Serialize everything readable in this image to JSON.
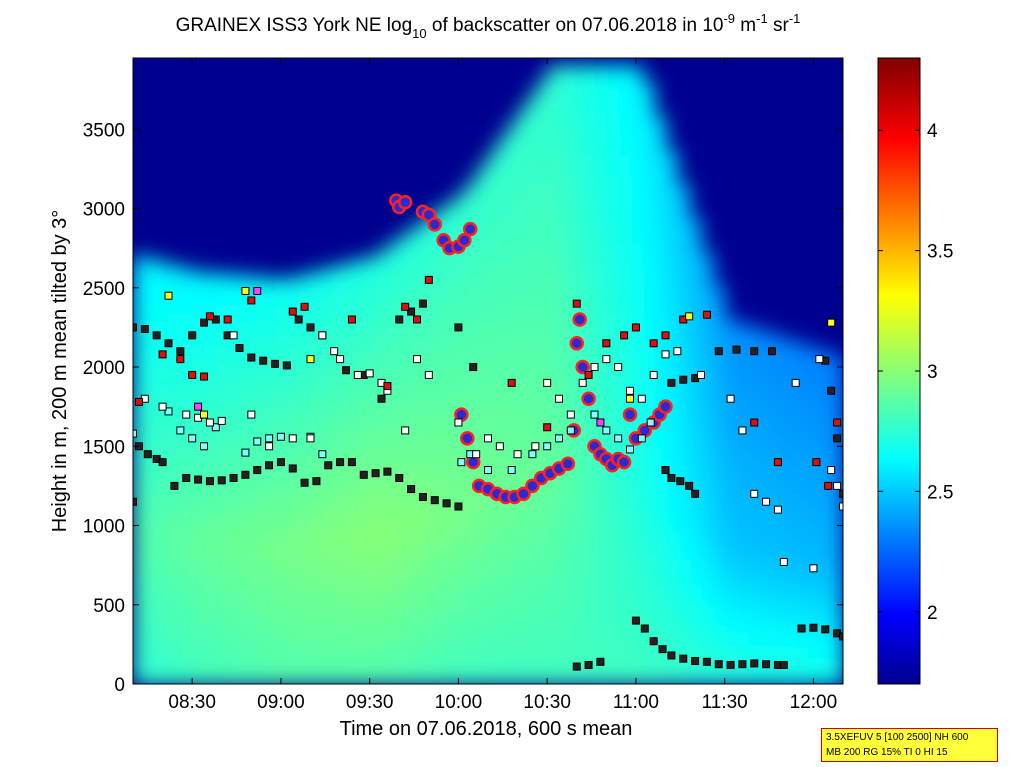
{
  "chart_data": {
    "type": "heatmap",
    "title": {
      "prefix": "GRAINEX ISS3 York NE log",
      "sub": "10",
      "middle": " of backscatter on 07.06.2018 in 10",
      "sup1": "-9",
      "unit_m": " m",
      "sup2": "-1",
      "unit_sr": " sr",
      "sup3": "-1"
    },
    "xlabel": "Time on 07.06.2018, 600 s mean",
    "ylabel": "Height in m, 200 m mean tilted by 3°",
    "x_range": [
      "08:10",
      "12:10"
    ],
    "y_range": [
      0,
      3950
    ],
    "x_ticks": [
      "08:30",
      "09:00",
      "09:30",
      "10:00",
      "10:30",
      "11:00",
      "11:30",
      "12:00"
    ],
    "y_ticks": [
      0,
      500,
      1000,
      1500,
      2000,
      2500,
      3000,
      3500
    ],
    "colorbar": {
      "range": [
        1.7,
        4.3
      ],
      "ticks": [
        "2",
        "2.5",
        "3",
        "3.5",
        "4"
      ],
      "tick_values": [
        2,
        2.5,
        3,
        3.5,
        4
      ],
      "colormap": [
        "#00008f",
        "#0000ff",
        "#00ffff",
        "#ffff00",
        "#ff0000",
        "#800000"
      ]
    },
    "background_field": [
      {
        "time": "08:10",
        "surface": 2.75,
        "mid": 2.85,
        "upper": 2.6,
        "top_of_aerosol": 2700
      },
      {
        "time": "08:30",
        "surface": 2.8,
        "mid": 2.9,
        "upper": 2.6,
        "top_of_aerosol": 2600
      },
      {
        "time": "09:00",
        "surface": 2.85,
        "mid": 2.95,
        "upper": 2.65,
        "top_of_aerosol": 2550
      },
      {
        "time": "09:30",
        "surface": 2.85,
        "mid": 3.0,
        "upper": 2.7,
        "top_of_aerosol": 2700
      },
      {
        "time": "10:00",
        "surface": 2.8,
        "mid": 2.95,
        "upper": 2.75,
        "top_of_aerosol": 3100
      },
      {
        "time": "10:30",
        "surface": 2.8,
        "mid": 2.9,
        "upper": 2.75,
        "top_of_aerosol": 3900
      },
      {
        "time": "11:00",
        "surface": 2.8,
        "mid": 2.7,
        "upper": 2.6,
        "top_of_aerosol": 3900
      },
      {
        "time": "11:30",
        "surface": 2.75,
        "mid": 2.5,
        "upper": 2.35,
        "top_of_aerosol": 2300
      },
      {
        "time": "12:10",
        "surface": 2.7,
        "mid": 2.45,
        "upper": 2.3,
        "top_of_aerosol": 2050
      }
    ],
    "series": [
      {
        "marker": "cloud-base",
        "color": "#2a2ad0",
        "edge": "#ff2020",
        "points": [
          [
            "09:39",
            3050
          ],
          [
            "09:40",
            3010
          ],
          [
            "09:42",
            3040
          ],
          [
            "09:48",
            2980
          ],
          [
            "09:50",
            2960
          ],
          [
            "09:52",
            2900
          ],
          [
            "09:55",
            2800
          ],
          [
            "09:57",
            2750
          ],
          [
            "10:00",
            2760
          ],
          [
            "10:02",
            2800
          ],
          [
            "10:04",
            2870
          ],
          [
            "10:01",
            1700
          ],
          [
            "10:03",
            1550
          ],
          [
            "10:05",
            1400
          ],
          [
            "10:07",
            1250
          ],
          [
            "10:10",
            1230
          ],
          [
            "10:13",
            1200
          ],
          [
            "10:16",
            1180
          ],
          [
            "10:19",
            1180
          ],
          [
            "10:22",
            1200
          ],
          [
            "10:25",
            1250
          ],
          [
            "10:28",
            1300
          ],
          [
            "10:31",
            1330
          ],
          [
            "10:34",
            1360
          ],
          [
            "10:37",
            1390
          ],
          [
            "10:39",
            1600
          ],
          [
            "10:40",
            2150
          ],
          [
            "10:41",
            2300
          ],
          [
            "10:42",
            2000
          ],
          [
            "10:44",
            1800
          ],
          [
            "10:46",
            1500
          ],
          [
            "10:48",
            1450
          ],
          [
            "10:50",
            1420
          ],
          [
            "10:52",
            1380
          ],
          [
            "10:54",
            1420
          ],
          [
            "10:56",
            1400
          ],
          [
            "10:58",
            1700
          ],
          [
            "11:00",
            1550
          ],
          [
            "11:03",
            1600
          ],
          [
            "11:06",
            1650
          ],
          [
            "11:08",
            1700
          ],
          [
            "11:10",
            1750
          ]
        ]
      },
      {
        "marker": "layer-lower",
        "color": "#222222",
        "points": [
          [
            "08:10",
            1150
          ],
          [
            "08:12",
            1500
          ],
          [
            "08:15",
            1450
          ],
          [
            "08:18",
            1420
          ],
          [
            "08:20",
            1400
          ],
          [
            "08:24",
            1250
          ],
          [
            "08:28",
            1300
          ],
          [
            "08:32",
            1290
          ],
          [
            "08:36",
            1280
          ],
          [
            "08:40",
            1285
          ],
          [
            "08:44",
            1300
          ],
          [
            "08:48",
            1320
          ],
          [
            "08:52",
            1350
          ],
          [
            "08:56",
            1380
          ],
          [
            "09:00",
            1400
          ],
          [
            "09:04",
            1360
          ],
          [
            "09:08",
            1270
          ],
          [
            "09:12",
            1280
          ],
          [
            "09:16",
            1380
          ],
          [
            "09:20",
            1400
          ],
          [
            "09:24",
            1400
          ],
          [
            "09:28",
            1320
          ],
          [
            "09:32",
            1330
          ],
          [
            "09:36",
            1340
          ],
          [
            "09:40",
            1300
          ],
          [
            "09:44",
            1230
          ],
          [
            "09:48",
            1180
          ],
          [
            "09:52",
            1160
          ],
          [
            "09:56",
            1140
          ],
          [
            "10:00",
            1120
          ],
          [
            "11:10",
            1350
          ],
          [
            "11:12",
            1300
          ],
          [
            "11:15",
            1280
          ],
          [
            "11:18",
            1250
          ],
          [
            "11:20",
            1200
          ],
          [
            "10:40",
            110
          ],
          [
            "10:44",
            120
          ],
          [
            "10:48",
            140
          ],
          [
            "11:00",
            400
          ],
          [
            "11:03",
            350
          ],
          [
            "11:06",
            270
          ],
          [
            "11:09",
            220
          ],
          [
            "11:12",
            180
          ],
          [
            "11:16",
            160
          ],
          [
            "11:20",
            145
          ],
          [
            "11:24",
            140
          ],
          [
            "11:28",
            125
          ],
          [
            "11:32",
            120
          ],
          [
            "11:36",
            125
          ],
          [
            "11:40",
            130
          ],
          [
            "11:44",
            125
          ],
          [
            "11:48",
            120
          ],
          [
            "11:50",
            120
          ],
          [
            "11:56",
            350
          ],
          [
            "12:00",
            355
          ],
          [
            "12:04",
            345
          ],
          [
            "12:08",
            320
          ],
          [
            "12:10",
            300
          ]
        ]
      },
      {
        "marker": "layer-upper",
        "color": "#222222",
        "points": [
          [
            "08:10",
            2250
          ],
          [
            "08:14",
            2240
          ],
          [
            "08:18",
            2200
          ],
          [
            "08:22",
            2150
          ],
          [
            "08:26",
            2100
          ],
          [
            "08:30",
            2200
          ],
          [
            "08:34",
            2280
          ],
          [
            "08:38",
            2300
          ],
          [
            "08:42",
            2200
          ],
          [
            "08:46",
            2120
          ],
          [
            "08:50",
            2060
          ],
          [
            "08:54",
            2040
          ],
          [
            "08:58",
            2020
          ],
          [
            "09:02",
            2010
          ],
          [
            "09:06",
            2300
          ],
          [
            "09:10",
            2250
          ],
          [
            "09:14",
            2200
          ],
          [
            "09:22",
            1980
          ],
          [
            "09:28",
            1950
          ],
          [
            "09:34",
            1800
          ],
          [
            "09:40",
            2300
          ],
          [
            "09:44",
            2350
          ],
          [
            "09:48",
            2400
          ],
          [
            "10:00",
            2250
          ],
          [
            "10:05",
            2000
          ],
          [
            "11:12",
            1900
          ],
          [
            "11:16",
            1920
          ],
          [
            "11:20",
            1930
          ],
          [
            "11:28",
            2100
          ],
          [
            "11:34",
            2110
          ],
          [
            "11:40",
            2100
          ],
          [
            "11:46",
            2100
          ],
          [
            "12:04",
            2040
          ],
          [
            "12:06",
            1850
          ],
          [
            "12:08",
            1550
          ],
          [
            "12:10",
            1200
          ]
        ]
      },
      {
        "marker": "scatter-cyan",
        "color": "#7fffff",
        "points": [
          [
            "08:10",
            1580
          ],
          [
            "08:22",
            1720
          ],
          [
            "08:26",
            1600
          ],
          [
            "08:30",
            1550
          ],
          [
            "08:34",
            1500
          ],
          [
            "08:38",
            1620
          ],
          [
            "08:48",
            1460
          ],
          [
            "08:52",
            1530
          ],
          [
            "08:56",
            1550
          ],
          [
            "09:00",
            1560
          ],
          [
            "09:10",
            1560
          ],
          [
            "09:14",
            1450
          ],
          [
            "10:01",
            1400
          ],
          [
            "10:04",
            1450
          ],
          [
            "10:10",
            1350
          ],
          [
            "10:18",
            1350
          ],
          [
            "10:25",
            1450
          ],
          [
            "10:30",
            1500
          ],
          [
            "10:34",
            1550
          ],
          [
            "10:38",
            1600
          ],
          [
            "10:46",
            1700
          ],
          [
            "10:50",
            1600
          ],
          [
            "10:54",
            1550
          ],
          [
            "10:58",
            1480
          ],
          [
            "11:02",
            1550
          ],
          [
            "11:05",
            1650
          ]
        ]
      },
      {
        "marker": "scatter-white",
        "color": "#ffffff",
        "points": [
          [
            "08:14",
            1800
          ],
          [
            "08:20",
            1750
          ],
          [
            "08:28",
            1700
          ],
          [
            "08:32",
            1680
          ],
          [
            "08:36",
            1650
          ],
          [
            "08:40",
            1660
          ],
          [
            "08:44",
            2200
          ],
          [
            "08:50",
            1700
          ],
          [
            "08:56",
            1500
          ],
          [
            "09:04",
            1550
          ],
          [
            "09:10",
            1550
          ],
          [
            "09:14",
            2200
          ],
          [
            "09:18",
            2100
          ],
          [
            "09:20",
            2050
          ],
          [
            "09:26",
            1950
          ],
          [
            "09:30",
            1960
          ],
          [
            "09:34",
            1900
          ],
          [
            "09:36",
            1850
          ],
          [
            "09:42",
            1600
          ],
          [
            "09:46",
            2050
          ],
          [
            "09:50",
            1950
          ],
          [
            "10:00",
            1650
          ],
          [
            "10:06",
            1450
          ],
          [
            "10:10",
            1550
          ],
          [
            "10:14",
            1500
          ],
          [
            "10:20",
            1450
          ],
          [
            "10:26",
            1500
          ],
          [
            "10:30",
            1900
          ],
          [
            "10:34",
            1800
          ],
          [
            "10:38",
            1700
          ],
          [
            "10:42",
            1900
          ],
          [
            "10:46",
            2000
          ],
          [
            "10:50",
            2050
          ],
          [
            "10:54",
            2000
          ],
          [
            "10:58",
            1850
          ],
          [
            "11:02",
            1800
          ],
          [
            "11:06",
            1950
          ],
          [
            "11:10",
            2080
          ],
          [
            "11:14",
            2100
          ],
          [
            "11:22",
            1950
          ],
          [
            "11:32",
            1800
          ],
          [
            "11:36",
            1600
          ],
          [
            "11:40",
            1200
          ],
          [
            "11:44",
            1150
          ],
          [
            "11:48",
            1100
          ],
          [
            "11:50",
            770
          ],
          [
            "11:54",
            1900
          ],
          [
            "12:00",
            730
          ],
          [
            "12:02",
            2050
          ],
          [
            "12:06",
            1350
          ],
          [
            "12:08",
            1250
          ],
          [
            "12:10",
            1120
          ]
        ]
      },
      {
        "marker": "scatter-red",
        "color": "#dd1010",
        "points": [
          [
            "08:12",
            1780
          ],
          [
            "08:20",
            2080
          ],
          [
            "08:26",
            2050
          ],
          [
            "08:30",
            1950
          ],
          [
            "08:34",
            1940
          ],
          [
            "08:36",
            2320
          ],
          [
            "08:42",
            2300
          ],
          [
            "08:50",
            2420
          ],
          [
            "09:04",
            2350
          ],
          [
            "09:08",
            2380
          ],
          [
            "09:24",
            2300
          ],
          [
            "09:36",
            1880
          ],
          [
            "09:42",
            2380
          ],
          [
            "09:46",
            2300
          ],
          [
            "09:50",
            2550
          ],
          [
            "10:18",
            1900
          ],
          [
            "10:30",
            1620
          ],
          [
            "10:40",
            2400
          ],
          [
            "10:44",
            1950
          ],
          [
            "10:50",
            2150
          ],
          [
            "10:56",
            2200
          ],
          [
            "11:00",
            2250
          ],
          [
            "11:06",
            2150
          ],
          [
            "11:10",
            2200
          ],
          [
            "11:16",
            2300
          ],
          [
            "11:24",
            2330
          ],
          [
            "11:40",
            1650
          ],
          [
            "11:48",
            1400
          ],
          [
            "12:01",
            1400
          ],
          [
            "12:05",
            1250
          ],
          [
            "12:08",
            1650
          ]
        ]
      },
      {
        "marker": "scatter-yellow",
        "color": "#ffff20",
        "points": [
          [
            "08:22",
            2450
          ],
          [
            "08:34",
            1700
          ],
          [
            "08:48",
            2480
          ],
          [
            "09:10",
            2050
          ],
          [
            "10:58",
            1800
          ],
          [
            "11:18",
            2320
          ],
          [
            "12:06",
            2280
          ]
        ]
      },
      {
        "marker": "scatter-magenta",
        "color": "#ff40ff",
        "points": [
          [
            "08:32",
            1750
          ],
          [
            "08:52",
            2480
          ],
          [
            "10:48",
            1650
          ]
        ]
      }
    ]
  },
  "info": {
    "line1": "3.5XEFUV 5 [100 2500] NH 600",
    "line2": "MB 200 RG 15% TI 0 HI 15"
  }
}
